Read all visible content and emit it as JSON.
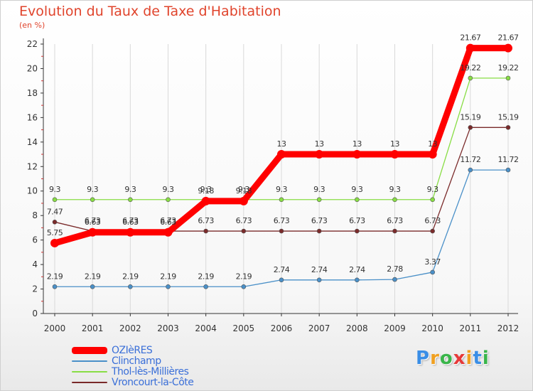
{
  "chart_data": {
    "type": "line",
    "title": "Evolution du Taux de Taxe d'Habitation",
    "ylabel": "(en %)",
    "xlabel": "",
    "x": [
      "2000",
      "2001",
      "2002",
      "2003",
      "2004",
      "2005",
      "2006",
      "2007",
      "2008",
      "2009",
      "2010",
      "2011",
      "2012"
    ],
    "ylim": [
      0,
      22
    ],
    "yticks": [
      "0",
      "2",
      "4",
      "6",
      "8",
      "10",
      "12",
      "14",
      "16",
      "18",
      "20",
      "22"
    ],
    "grid": "vertical",
    "legend": "bottom-left",
    "series": [
      {
        "name": "OZIèRES",
        "color": "#ff0000",
        "values": [
          5.75,
          6.63,
          6.63,
          6.63,
          9.18,
          9.18,
          13,
          13,
          13,
          13,
          13,
          21.67,
          21.67
        ],
        "labels": [
          "5.75",
          "6.63",
          "6.63",
          "6.63",
          "9.18",
          "9.18",
          "13",
          "13",
          "13",
          "13",
          "13",
          "21.67",
          "21.67"
        ]
      },
      {
        "name": "Clinchamp",
        "color": "#4a90c8",
        "values": [
          2.19,
          2.19,
          2.19,
          2.19,
          2.19,
          2.19,
          2.74,
          2.74,
          2.74,
          2.78,
          3.37,
          11.72,
          11.72
        ],
        "labels": [
          "2.19",
          "2.19",
          "2.19",
          "2.19",
          "2.19",
          "2.19",
          "2.74",
          "2.74",
          "2.74",
          "2.78",
          "3.37",
          "11.72",
          "11.72"
        ]
      },
      {
        "name": "Thol-lès-Millières",
        "color": "#88dd44",
        "values": [
          9.3,
          9.3,
          9.3,
          9.3,
          9.3,
          9.3,
          9.3,
          9.3,
          9.3,
          9.3,
          9.3,
          19.22,
          19.22
        ],
        "labels": [
          "9.3",
          "9.3",
          "9.3",
          "9.3",
          "9.3",
          "9.3",
          "9.3",
          "9.3",
          "9.3",
          "9.3",
          "9.3",
          "19.22",
          "19.22"
        ]
      },
      {
        "name": "Vroncourt-la-Côte",
        "color": "#7a2a2a",
        "values": [
          7.47,
          6.73,
          6.73,
          6.73,
          6.73,
          6.73,
          6.73,
          6.73,
          6.73,
          6.73,
          6.73,
          15.19,
          15.19
        ],
        "labels": [
          "7.47",
          "6.73",
          "6.73",
          "6.73",
          "6.73",
          "6.73",
          "6.73",
          "6.73",
          "6.73",
          "6.73",
          "6.73",
          "15.19",
          "15.19"
        ]
      }
    ]
  },
  "legend": {
    "items": [
      {
        "label": "OZIèRES",
        "color": "#ff0000",
        "text_color": "#3a6fd8"
      },
      {
        "label": "Clinchamp",
        "color": "#4a90c8",
        "text_color": "#3a6fd8"
      },
      {
        "label": "Thol-lès-Millières",
        "color": "#88dd44",
        "text_color": "#3a6fd8"
      },
      {
        "label": "Vroncourt-la-Côte",
        "color": "#7a2a2a",
        "text_color": "#3a6fd8"
      }
    ]
  },
  "logo": {
    "letters": [
      "P",
      "r",
      "o",
      "x",
      "i",
      "t",
      "i"
    ],
    "colors": [
      "#3a8ee6",
      "#f0a020",
      "#39b54a",
      "#e63939",
      "#f0a020",
      "#3a8ee6",
      "#39b54a"
    ]
  }
}
